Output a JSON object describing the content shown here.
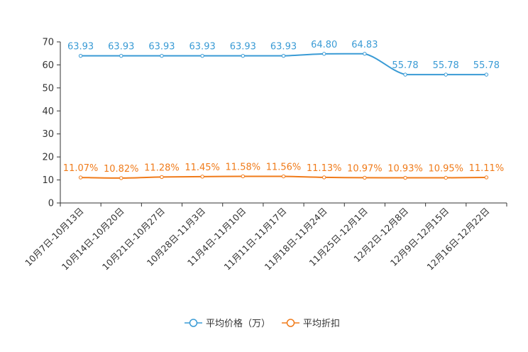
{
  "chart_data": {
    "type": "line",
    "title": "",
    "xlabel": "",
    "ylabel": "",
    "ylim": [
      0,
      70
    ],
    "yticks": [
      0,
      10,
      20,
      30,
      40,
      50,
      60,
      70
    ],
    "categories": [
      "10月7日-10月13日",
      "10月14日-10月20日",
      "10月21日-10月27日",
      "10月28日-11月3日",
      "11月4日-11月10日",
      "11月11日-11月17日",
      "11月18日-11月24日",
      "11月25日-12月1日",
      "12月2日-12月8日",
      "12月9日-12月15日",
      "12月16日-12月22日"
    ],
    "series": [
      {
        "name": "平均价格（万）",
        "color": "#3a9bd5",
        "values": [
          63.93,
          63.93,
          63.93,
          63.93,
          63.93,
          63.93,
          64.8,
          64.83,
          55.78,
          55.78,
          55.78
        ],
        "labels": [
          "63.93",
          "63.93",
          "63.93",
          "63.93",
          "63.93",
          "63.93",
          "64.80",
          "64.83",
          "55.78",
          "55.78",
          "55.78"
        ]
      },
      {
        "name": "平均折扣",
        "color": "#f07b1a",
        "values": [
          11.07,
          10.82,
          11.28,
          11.45,
          11.58,
          11.56,
          11.13,
          10.97,
          10.93,
          10.95,
          11.11
        ],
        "labels": [
          "11.07%",
          "10.82%",
          "11.28%",
          "11.45%",
          "11.58%",
          "11.56%",
          "11.13%",
          "10.97%",
          "10.93%",
          "10.95%",
          "11.11%"
        ]
      }
    ],
    "legend_position": "bottom-center"
  }
}
